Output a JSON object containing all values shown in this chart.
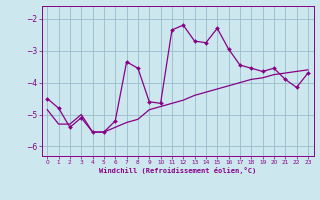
{
  "xlabel": "Windchill (Refroidissement éolien,°C)",
  "bg_color": "#cce8ee",
  "line_color": "#880088",
  "grid_color": "#99bbcc",
  "ylim": [
    -6.3,
    -1.6
  ],
  "xlim": [
    -0.5,
    23.5
  ],
  "yticks": [
    -6,
    -5,
    -4,
    -3,
    -2
  ],
  "xticks": [
    0,
    1,
    2,
    3,
    4,
    5,
    6,
    7,
    8,
    9,
    10,
    11,
    12,
    13,
    14,
    15,
    16,
    17,
    18,
    19,
    20,
    21,
    22,
    23
  ],
  "line1_x": [
    0,
    1,
    2,
    3,
    4,
    5,
    6,
    7,
    8,
    9,
    10,
    11,
    12,
    13,
    14,
    15,
    16,
    17,
    18,
    19,
    20,
    21,
    22,
    23
  ],
  "line1_y": [
    -4.5,
    -4.8,
    -5.4,
    -5.1,
    -5.55,
    -5.55,
    -5.2,
    -3.35,
    -3.55,
    -4.6,
    -4.65,
    -2.35,
    -2.2,
    -2.7,
    -2.75,
    -2.3,
    -2.95,
    -3.45,
    -3.55,
    -3.65,
    -3.55,
    -3.9,
    -4.15,
    -3.7
  ],
  "line2_x": [
    0,
    1,
    2,
    3,
    4,
    5,
    6,
    7,
    8,
    9,
    10,
    11,
    12,
    13,
    14,
    15,
    16,
    17,
    18,
    19,
    20,
    21,
    22,
    23
  ],
  "line2_y": [
    -4.85,
    -5.3,
    -5.3,
    -5.0,
    -5.55,
    -5.55,
    -5.4,
    -5.25,
    -5.15,
    -4.85,
    -4.75,
    -4.65,
    -4.55,
    -4.4,
    -4.3,
    -4.2,
    -4.1,
    -4.0,
    -3.9,
    -3.85,
    -3.75,
    -3.7,
    -3.65,
    -3.6
  ]
}
